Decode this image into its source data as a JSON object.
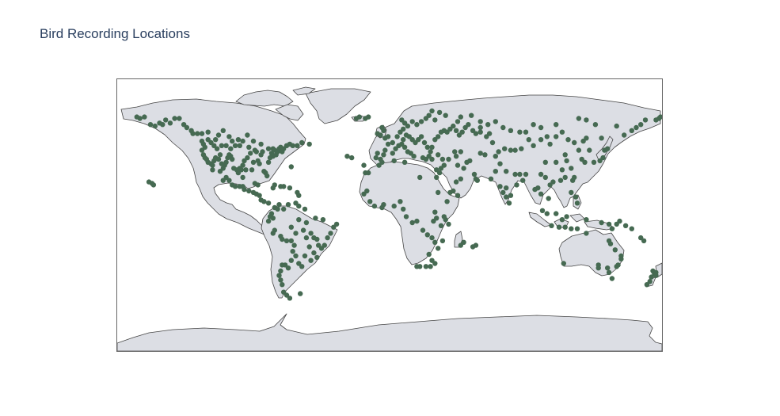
{
  "title": "Bird Recording Locations",
  "colors": {
    "marker": "#466a52",
    "land": "#dcdee4",
    "coastline": "#444444",
    "frame": "#666666",
    "title": "#2a3f5f"
  },
  "chart_data": {
    "type": "scatter",
    "title": "Bird Recording Locations",
    "projection": "equirectangular",
    "lon_range": [
      -180,
      180
    ],
    "lat_range": [
      -90,
      90
    ],
    "showland": true,
    "marker_color": "#466a52",
    "points": [
      [
        -167,
        65
      ],
      [
        -165,
        64
      ],
      [
        -162,
        65
      ],
      [
        -158,
        60
      ],
      [
        -155,
        59
      ],
      [
        -152,
        61
      ],
      [
        -150,
        60
      ],
      [
        -148,
        63
      ],
      [
        -145,
        61
      ],
      [
        -142,
        64
      ],
      [
        -139,
        64
      ],
      [
        -136,
        60
      ],
      [
        -134,
        58
      ],
      [
        -131,
        56
      ],
      [
        -127,
        54
      ],
      [
        -124,
        49
      ],
      [
        -123,
        47
      ],
      [
        -122,
        45
      ],
      [
        -124,
        43
      ],
      [
        -123,
        40
      ],
      [
        -122,
        38
      ],
      [
        -121,
        37
      ],
      [
        -120,
        35
      ],
      [
        -118,
        34
      ],
      [
        -117,
        33
      ],
      [
        -116,
        36
      ],
      [
        -115,
        38
      ],
      [
        -113,
        37
      ],
      [
        -112,
        40
      ],
      [
        -111,
        34
      ],
      [
        -110,
        31
      ],
      [
        -109,
        33
      ],
      [
        -108,
        35
      ],
      [
        -107,
        38
      ],
      [
        -106,
        40
      ],
      [
        -105,
        39
      ],
      [
        -104,
        37
      ],
      [
        -103,
        31
      ],
      [
        -101,
        30
      ],
      [
        -100,
        28
      ],
      [
        -99,
        31
      ],
      [
        -98,
        30
      ],
      [
        -97,
        33
      ],
      [
        -96,
        36
      ],
      [
        -95,
        30
      ],
      [
        -94,
        38
      ],
      [
        -93,
        45
      ],
      [
        -92,
        41
      ],
      [
        -91,
        30
      ],
      [
        -90,
        35
      ],
      [
        -89,
        43
      ],
      [
        -88,
        42
      ],
      [
        -87,
        36
      ],
      [
        -86,
        34
      ],
      [
        -85,
        40
      ],
      [
        -84,
        42
      ],
      [
        -83,
        29
      ],
      [
        -82,
        28
      ],
      [
        -81,
        26
      ],
      [
        -80,
        35
      ],
      [
        -79,
        38
      ],
      [
        -78,
        41
      ],
      [
        -77,
        39
      ],
      [
        -76,
        43
      ],
      [
        -75,
        40
      ],
      [
        -74,
        42
      ],
      [
        -73,
        44
      ],
      [
        -72,
        45
      ],
      [
        -71,
        42
      ],
      [
        -70,
        44
      ],
      [
        -68,
        46
      ],
      [
        -66,
        47
      ],
      [
        -64,
        46
      ],
      [
        -61,
        46
      ],
      [
        -58,
        48
      ],
      [
        -53,
        47
      ],
      [
        -115,
        50
      ],
      [
        -113,
        53
      ],
      [
        -110,
        56
      ],
      [
        -106,
        52
      ],
      [
        -100,
        50
      ],
      [
        -97,
        49
      ],
      [
        -94,
        53
      ],
      [
        -90,
        49
      ],
      [
        -85,
        47
      ],
      [
        -80,
        44
      ],
      [
        -77,
        44
      ],
      [
        -120,
        50
      ],
      [
        -118,
        48
      ],
      [
        -116,
        46
      ],
      [
        -114,
        44
      ],
      [
        -111,
        46
      ],
      [
        -108,
        46
      ],
      [
        -105,
        44
      ],
      [
        -102,
        46
      ],
      [
        -99,
        46
      ],
      [
        -104,
        49
      ],
      [
        -124,
        54
      ],
      [
        -130,
        54
      ],
      [
        -120,
        55
      ],
      [
        -117,
        30
      ],
      [
        -112,
        29
      ],
      [
        -108,
        25
      ],
      [
        -106,
        23
      ],
      [
        -104,
        20
      ],
      [
        -102,
        19
      ],
      [
        -99,
        19
      ],
      [
        -97,
        19
      ],
      [
        -96,
        17
      ],
      [
        -93,
        16
      ],
      [
        -90,
        15
      ],
      [
        -88,
        14
      ],
      [
        -86,
        13
      ],
      [
        -85,
        10
      ],
      [
        -83,
        9
      ],
      [
        -80,
        8
      ],
      [
        -77,
        18
      ],
      [
        -76,
        20
      ],
      [
        -72,
        19
      ],
      [
        -70,
        19
      ],
      [
        -66,
        18
      ],
      [
        -61,
        15
      ],
      [
        -60,
        13
      ],
      [
        -89,
        21
      ],
      [
        -87,
        20
      ],
      [
        -110,
        23
      ],
      [
        -97,
        25
      ],
      [
        -76,
        5
      ],
      [
        -74,
        4
      ],
      [
        -73,
        7
      ],
      [
        -78,
        1
      ],
      [
        -77,
        -2
      ],
      [
        -79,
        -1
      ],
      [
        -80,
        -4
      ],
      [
        -76,
        -10
      ],
      [
        -77,
        -12
      ],
      [
        -72,
        -14
      ],
      [
        -71,
        -16
      ],
      [
        -68,
        -17
      ],
      [
        -65,
        -17
      ],
      [
        -62,
        -12
      ],
      [
        -60,
        -3
      ],
      [
        -57,
        -10
      ],
      [
        -55,
        -5
      ],
      [
        -52,
        -12
      ],
      [
        -50,
        -15
      ],
      [
        -48,
        -16
      ],
      [
        -47,
        -20
      ],
      [
        -45,
        -22
      ],
      [
        -43,
        -20
      ],
      [
        -41,
        -15
      ],
      [
        -39,
        -12
      ],
      [
        -37,
        -8
      ],
      [
        -35,
        -6
      ],
      [
        -50,
        -25
      ],
      [
        -48,
        -28
      ],
      [
        -52,
        -30
      ],
      [
        -56,
        -27
      ],
      [
        -58,
        -34
      ],
      [
        -60,
        -32
      ],
      [
        -62,
        -27
      ],
      [
        -64,
        -24
      ],
      [
        -65,
        -30
      ],
      [
        -67,
        -35
      ],
      [
        -69,
        -33
      ],
      [
        -71,
        -33
      ],
      [
        -72,
        -37
      ],
      [
        -73,
        -40
      ],
      [
        -72,
        -43
      ],
      [
        -71,
        -46
      ],
      [
        -70,
        -51
      ],
      [
        -68,
        -53
      ],
      [
        -65,
        -8
      ],
      [
        -63,
        -20
      ],
      [
        -55,
        -15
      ],
      [
        -49,
        -2
      ],
      [
        -53,
        -21
      ],
      [
        -44,
        -3
      ],
      [
        -70,
        4
      ],
      [
        -67,
        7
      ],
      [
        -62,
        8
      ],
      [
        -60,
        6
      ],
      [
        -56,
        4
      ],
      [
        -159,
        22
      ],
      [
        -156,
        20
      ],
      [
        -157,
        21
      ],
      [
        -65,
        32
      ],
      [
        -9,
        38
      ],
      [
        -8,
        41
      ],
      [
        -6,
        37
      ],
      [
        -4,
        40
      ],
      [
        -3,
        43
      ],
      [
        -1,
        47
      ],
      [
        2,
        48
      ],
      [
        2,
        41
      ],
      [
        4,
        44
      ],
      [
        6,
        46
      ],
      [
        8,
        47
      ],
      [
        10,
        45
      ],
      [
        12,
        42
      ],
      [
        14,
        41
      ],
      [
        16,
        39
      ],
      [
        9,
        50
      ],
      [
        11,
        53
      ],
      [
        13,
        52
      ],
      [
        15,
        50
      ],
      [
        17,
        48
      ],
      [
        19,
        50
      ],
      [
        21,
        52
      ],
      [
        23,
        48
      ],
      [
        25,
        45
      ],
      [
        27,
        42
      ],
      [
        28,
        45
      ],
      [
        30,
        50
      ],
      [
        32,
        52
      ],
      [
        34,
        55
      ],
      [
        36,
        56
      ],
      [
        38,
        55
      ],
      [
        40,
        57
      ],
      [
        42,
        59
      ],
      [
        44,
        56
      ],
      [
        46,
        53
      ],
      [
        48,
        55
      ],
      [
        50,
        58
      ],
      [
        52,
        60
      ],
      [
        55,
        56
      ],
      [
        57,
        54
      ],
      [
        60,
        55
      ],
      [
        5,
        52
      ],
      [
        7,
        55
      ],
      [
        9,
        57
      ],
      [
        12,
        59
      ],
      [
        15,
        62
      ],
      [
        18,
        60
      ],
      [
        21,
        62
      ],
      [
        24,
        64
      ],
      [
        26,
        66
      ],
      [
        28,
        69
      ],
      [
        30,
        63
      ],
      [
        10,
        61
      ],
      [
        8,
        63
      ],
      [
        -6,
        53
      ],
      [
        -8,
        54
      ],
      [
        -3,
        51
      ],
      [
        -1,
        52
      ],
      [
        -4,
        56
      ],
      [
        -5,
        58
      ],
      [
        -22,
        64
      ],
      [
        -20,
        65
      ],
      [
        -16,
        64
      ],
      [
        -14,
        65
      ],
      [
        -25,
        38
      ],
      [
        -28,
        39
      ],
      [
        -17,
        33
      ],
      [
        -16,
        28
      ],
      [
        -14,
        28
      ],
      [
        22,
        38
      ],
      [
        24,
        37
      ],
      [
        26,
        39
      ],
      [
        28,
        37
      ],
      [
        32,
        40
      ],
      [
        35,
        37
      ],
      [
        36,
        33
      ],
      [
        34,
        31
      ],
      [
        31,
        30
      ],
      [
        39,
        37
      ],
      [
        44,
        39
      ],
      [
        43,
        42
      ],
      [
        47,
        42
      ],
      [
        45,
        33
      ],
      [
        49,
        31
      ],
      [
        51,
        35
      ],
      [
        53,
        36
      ],
      [
        47,
        24
      ],
      [
        44,
        22
      ],
      [
        42,
        16
      ],
      [
        45,
        13
      ],
      [
        57,
        24
      ],
      [
        56,
        27
      ],
      [
        58,
        23
      ],
      [
        60,
        41
      ],
      [
        63,
        40
      ],
      [
        64,
        52
      ],
      [
        68,
        48
      ],
      [
        70,
        39
      ],
      [
        72,
        42
      ],
      [
        67,
        24
      ],
      [
        70,
        29
      ],
      [
        73,
        34
      ],
      [
        77,
        29
      ],
      [
        77,
        18
      ],
      [
        75,
        15
      ],
      [
        73,
        19
      ],
      [
        77,
        12
      ],
      [
        80,
        13
      ],
      [
        79,
        8
      ],
      [
        83,
        27
      ],
      [
        86,
        27
      ],
      [
        88,
        23
      ],
      [
        84,
        20
      ],
      [
        90,
        27
      ],
      [
        92,
        50
      ],
      [
        95,
        46
      ],
      [
        100,
        50
      ],
      [
        104,
        52
      ],
      [
        106,
        47
      ],
      [
        110,
        52
      ],
      [
        114,
        55
      ],
      [
        118,
        50
      ],
      [
        122,
        48
      ],
      [
        128,
        49
      ],
      [
        130,
        51
      ],
      [
        132,
        43
      ],
      [
        125,
        43
      ],
      [
        127,
        37
      ],
      [
        129,
        35
      ],
      [
        135,
        35
      ],
      [
        139,
        36
      ],
      [
        141,
        38
      ],
      [
        142,
        43
      ],
      [
        144,
        44
      ],
      [
        116,
        40
      ],
      [
        117,
        36
      ],
      [
        120,
        31
      ],
      [
        114,
        30
      ],
      [
        110,
        35
      ],
      [
        103,
        35
      ],
      [
        100,
        27
      ],
      [
        103,
        25
      ],
      [
        108,
        22
      ],
      [
        113,
        23
      ],
      [
        116,
        25
      ],
      [
        121,
        23
      ],
      [
        122,
        25
      ],
      [
        120,
        15
      ],
      [
        123,
        12
      ],
      [
        124,
        8
      ],
      [
        106,
        20
      ],
      [
        105,
        11
      ],
      [
        100,
        14
      ],
      [
        98,
        18
      ],
      [
        96,
        17
      ],
      [
        101,
        3
      ],
      [
        104,
        1
      ],
      [
        110,
        1
      ],
      [
        114,
        -3
      ],
      [
        117,
        -1
      ],
      [
        107,
        -7
      ],
      [
        112,
        -8
      ],
      [
        116,
        -8
      ],
      [
        120,
        -9
      ],
      [
        124,
        -9
      ],
      [
        130,
        -3
      ],
      [
        140,
        -5
      ],
      [
        145,
        -6
      ],
      [
        147,
        -9
      ],
      [
        150,
        -6
      ],
      [
        152,
        -4
      ],
      [
        156,
        -7
      ],
      [
        160,
        -9
      ],
      [
        166,
        -15
      ],
      [
        168,
        -17
      ],
      [
        155,
        53
      ],
      [
        160,
        56
      ],
      [
        163,
        58
      ],
      [
        166,
        60
      ],
      [
        169,
        63
      ],
      [
        176,
        63
      ],
      [
        178,
        64
      ],
      [
        179,
        65
      ],
      [
        150,
        59
      ],
      [
        140,
        51
      ],
      [
        136,
        60
      ],
      [
        130,
        63
      ],
      [
        125,
        64
      ],
      [
        110,
        60
      ],
      [
        100,
        58
      ],
      [
        95,
        60
      ],
      [
        90,
        55
      ],
      [
        86,
        55
      ],
      [
        80,
        56
      ],
      [
        75,
        58
      ],
      [
        70,
        62
      ],
      [
        65,
        60
      ],
      [
        83,
        43
      ],
      [
        87,
        44
      ],
      [
        80,
        43
      ],
      [
        76,
        44
      ],
      [
        66,
        54
      ],
      [
        60,
        58
      ],
      [
        60,
        62
      ],
      [
        54,
        66
      ],
      [
        45,
        62
      ],
      [
        37,
        66
      ],
      [
        33,
        68
      ],
      [
        47,
        65
      ],
      [
        -17,
        14
      ],
      [
        -15,
        16
      ],
      [
        -13,
        9
      ],
      [
        -10,
        6
      ],
      [
        -5,
        5
      ],
      [
        -4,
        7
      ],
      [
        3,
        6
      ],
      [
        7,
        9
      ],
      [
        9,
        4
      ],
      [
        11,
        -1
      ],
      [
        15,
        -5
      ],
      [
        18,
        -4
      ],
      [
        22,
        -10
      ],
      [
        25,
        -13
      ],
      [
        28,
        -15
      ],
      [
        30,
        -18
      ],
      [
        32,
        -22
      ],
      [
        35,
        -17
      ],
      [
        37,
        -3
      ],
      [
        36,
        -1
      ],
      [
        39,
        -6
      ],
      [
        34,
        -7
      ],
      [
        31,
        -2
      ],
      [
        29,
        -4
      ],
      [
        38,
        9
      ],
      [
        40,
        15
      ],
      [
        32,
        15
      ],
      [
        30,
        2
      ],
      [
        26,
        -26
      ],
      [
        28,
        -30
      ],
      [
        30,
        -32
      ],
      [
        27,
        -34
      ],
      [
        24,
        -34
      ],
      [
        18,
        -34
      ],
      [
        20,
        -34
      ],
      [
        49,
        -18
      ],
      [
        47,
        -20
      ],
      [
        55,
        -21
      ],
      [
        57,
        -20
      ],
      [
        20,
        25
      ],
      [
        31,
        25
      ],
      [
        33,
        28
      ],
      [
        -7,
        33
      ],
      [
        -5,
        35
      ],
      [
        3,
        36
      ],
      [
        10,
        35
      ],
      [
        144,
        -35
      ],
      [
        145,
        -38
      ],
      [
        147,
        -42
      ],
      [
        150,
        -34
      ],
      [
        151,
        -33
      ],
      [
        153,
        -27
      ],
      [
        153,
        -29
      ],
      [
        146,
        -19
      ],
      [
        145,
        -17
      ],
      [
        115,
        -32
      ],
      [
        130,
        -12
      ],
      [
        138,
        -35
      ],
      [
        138,
        -33
      ],
      [
        149,
        -23
      ],
      [
        174,
        -37
      ],
      [
        175,
        -39
      ],
      [
        173,
        -41
      ],
      [
        172,
        -44
      ],
      [
        170,
        -46
      ],
      [
        176,
        -38
      ],
      [
        176,
        -40
      ],
      [
        -66,
        -55
      ],
      [
        -59,
        -52
      ]
    ]
  }
}
